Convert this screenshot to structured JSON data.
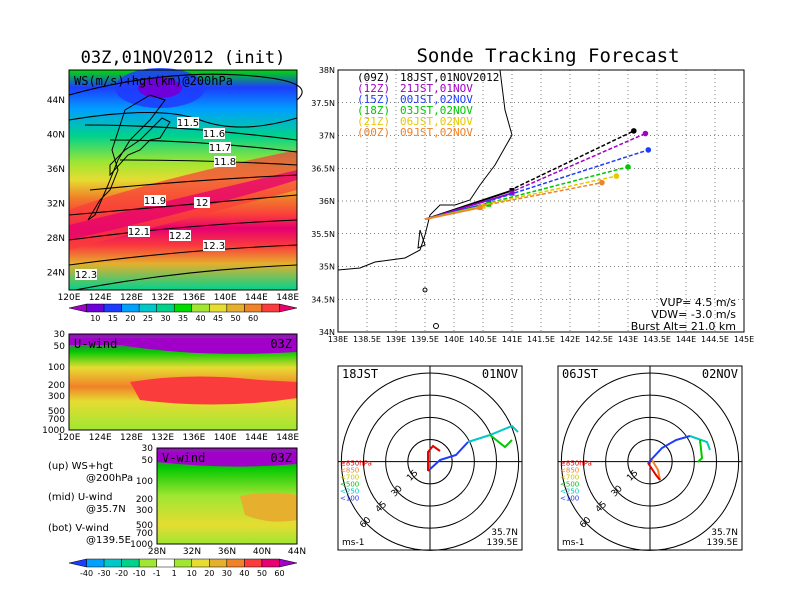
{
  "left_panel": {
    "title": "03Z,01NOV2012 (init)",
    "map_label": "WS(m/s)+hgt(km)@200hPa",
    "contour_labels": [
      "11.5",
      "11.6",
      "11.7",
      "11.8",
      "11.9",
      "12",
      "12.1",
      "12.2",
      "12.3",
      "12.3"
    ],
    "lat_ticks": [
      "44N",
      "40N",
      "36N",
      "32N",
      "28N",
      "24N"
    ],
    "lon_ticks": [
      "120E",
      "124E",
      "128E",
      "132E",
      "136E",
      "140E",
      "144E",
      "148E"
    ],
    "ws_colorbar": {
      "labels": [
        "10",
        "15",
        "20",
        "25",
        "30",
        "35",
        "40",
        "45",
        "50",
        "60"
      ],
      "colors": [
        "#a000c8",
        "#6e00dc",
        "#1e3cff",
        "#00a0ff",
        "#00c8c8",
        "#00d28c",
        "#00dc00",
        "#a0e632",
        "#e6dc32",
        "#e6af2d",
        "#f08228",
        "#fa3c3c",
        "#e60070"
      ]
    },
    "uwind": {
      "label": "U-wind",
      "time": "03Z",
      "p_ticks": [
        "30",
        "50",
        "100",
        "200",
        "300",
        "500",
        "700",
        "1000"
      ],
      "lon_ticks": [
        "120E",
        "124E",
        "128E",
        "132E",
        "136E",
        "140E",
        "144E",
        "148E"
      ]
    },
    "vwind": {
      "label": "V-wind",
      "time": "03Z",
      "p_ticks": [
        "30",
        "50",
        "100",
        "200",
        "300",
        "500",
        "700",
        "1000"
      ],
      "lat_ticks": [
        "28N",
        "32N",
        "36N",
        "40N",
        "44N"
      ]
    },
    "legend_lines": [
      "(up) WS+hgt",
      "@200hPa",
      "(mid) U-wind",
      "@35.7N",
      "(bot) V-wind",
      "@139.5E"
    ],
    "wind_colorbar": {
      "labels": [
        "-40",
        "-30",
        "-20",
        "-10",
        "-1",
        "1",
        "10",
        "20",
        "30",
        "40",
        "50",
        "60"
      ],
      "colors": [
        "#1e3cff",
        "#00a0ff",
        "#00c8c8",
        "#00d28c",
        "#a0e632",
        "#ffffff",
        "#a0e632",
        "#e6dc32",
        "#e6af2d",
        "#f08228",
        "#fa3c3c",
        "#e60070",
        "#a000c8"
      ]
    }
  },
  "main_title": "Sonde Tracking Forecast",
  "chart_data": [
    {
      "type": "line",
      "title": "Sonde Tracking Forecast",
      "xlim": [
        138,
        145
      ],
      "ylim": [
        34,
        38
      ],
      "x_ticks": [
        "138E",
        "138.5E",
        "139E",
        "139.5E",
        "140E",
        "140.5E",
        "141E",
        "141.5E",
        "142E",
        "142.5E",
        "143E",
        "143.5E",
        "144E",
        "144.5E",
        "145E"
      ],
      "y_ticks": [
        "34N",
        "34.5N",
        "35N",
        "35.5N",
        "36N",
        "36.5N",
        "37N",
        "37.5N",
        "38N"
      ],
      "legend": [
        {
          "code": "(09Z)",
          "label": "18JST,01NOV2012",
          "color": "#000000"
        },
        {
          "code": "(12Z)",
          "label": "21JST,01NOV",
          "color": "#a000c8"
        },
        {
          "code": "(15Z)",
          "label": "00JST,02NOV",
          "color": "#1e3cff"
        },
        {
          "code": "(18Z)",
          "label": "03JST,02NOV",
          "color": "#00c800"
        },
        {
          "code": "(21Z)",
          "label": "06JST,02NOV",
          "color": "#e6c800"
        },
        {
          "code": "(00Z)",
          "label": "09JST,02NOV",
          "color": "#f08228"
        }
      ],
      "series": [
        {
          "name": "18JST,01NOV2012",
          "color": "#000000",
          "x": [
            139.5,
            141.0,
            141.05,
            143.1
          ],
          "y": [
            35.72,
            36.16,
            36.2,
            37.07
          ]
        },
        {
          "name": "21JST,01NOV",
          "color": "#a000c8",
          "x": [
            139.5,
            141.0,
            141.05,
            143.3
          ],
          "y": [
            35.72,
            36.12,
            36.16,
            37.03
          ]
        },
        {
          "name": "00JST,02NOV",
          "color": "#1e3cff",
          "x": [
            139.5,
            140.6,
            140.65,
            143.35
          ],
          "y": [
            35.72,
            35.97,
            36.01,
            36.78
          ]
        },
        {
          "name": "03JST,02NOV",
          "color": "#00c800",
          "x": [
            139.5,
            140.6,
            140.65,
            143.0
          ],
          "y": [
            35.72,
            35.95,
            35.98,
            36.52
          ]
        },
        {
          "name": "06JST,02NOV",
          "color": "#e6c800",
          "x": [
            139.5,
            140.5,
            140.55,
            142.8
          ],
          "y": [
            35.72,
            35.92,
            35.95,
            36.38
          ]
        },
        {
          "name": "09JST,02NOV",
          "color": "#f08228",
          "x": [
            139.5,
            140.45,
            140.5,
            142.55
          ],
          "y": [
            35.72,
            35.9,
            35.93,
            36.28
          ]
        }
      ],
      "annotations": [
        "VUP= 4.5 m/s",
        "VDW= -3.0 m/s",
        "Burst Alt= 21.0 km"
      ]
    }
  ],
  "hodo_left": {
    "title_left": "18JST",
    "title_right": "01NOV",
    "ring_labels": [
      "15",
      "30",
      "45",
      "60"
    ],
    "unit": "ms-1",
    "loc1": "35.7N",
    "loc2": "139.5E"
  },
  "hodo_right": {
    "title_left": "06JST",
    "title_right": "02NOV",
    "ring_labels": [
      "15",
      "30",
      "45",
      "60"
    ],
    "unit": "ms-1",
    "loc1": "35.7N",
    "loc2": "139.5E"
  },
  "hodo_legend": [
    {
      "label": "≥850hPa",
      "color": "#e60000"
    },
    {
      "label": "<850",
      "color": "#f08228"
    },
    {
      "label": "<700",
      "color": "#c8c800"
    },
    {
      "label": "<500",
      "color": "#00c800"
    },
    {
      "label": "<250",
      "color": "#00c8c8"
    },
    {
      "label": "<100",
      "color": "#1e3cff"
    }
  ]
}
